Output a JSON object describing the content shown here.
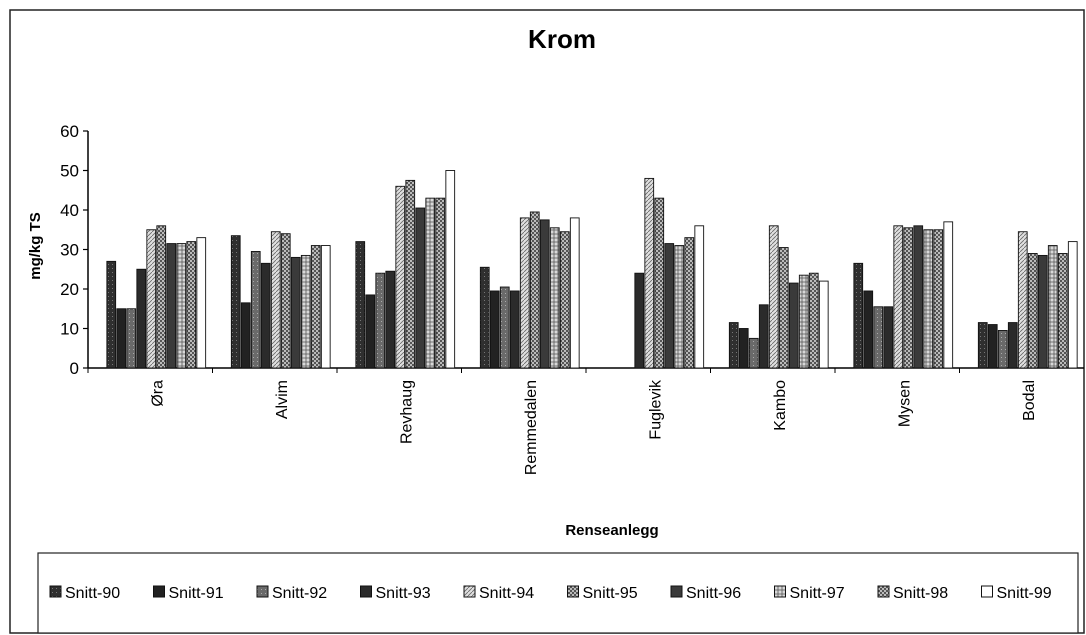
{
  "chart_data": {
    "type": "bar",
    "title": "Krom",
    "xlabel": "Renseanlegg",
    "ylabel": "mg/kg TS",
    "ylim": [
      0,
      60
    ],
    "yticks": [
      0,
      10,
      20,
      30,
      40,
      50,
      60
    ],
    "grid": false,
    "legend_position": "bottom",
    "categories": [
      "Øra",
      "Alvim",
      "Revhaug",
      "Remmedalen",
      "Fuglevik",
      "Kambo",
      "Mysen",
      "Bodal"
    ],
    "series": [
      {
        "name": "Snitt-90",
        "values": [
          27,
          33.5,
          32,
          25.5,
          null,
          11.5,
          26.5,
          11.5
        ],
        "color": "#3a3a3a"
      },
      {
        "name": "Snitt-91",
        "values": [
          15,
          16.5,
          18.5,
          19.5,
          null,
          10,
          19.5,
          11
        ],
        "color": "#2a2a2a"
      },
      {
        "name": "Snitt-92",
        "values": [
          15,
          29.5,
          24,
          20.5,
          null,
          7.5,
          15.5,
          9.5
        ],
        "color": "#555555"
      },
      {
        "name": "Snitt-93",
        "values": [
          25,
          26.5,
          24.5,
          19.5,
          24,
          16,
          15.5,
          11.5
        ],
        "color": "#333333"
      },
      {
        "name": "Snitt-94",
        "values": [
          35,
          34.5,
          46,
          38,
          48,
          36,
          36,
          34.5
        ],
        "color": "#bdbdbd"
      },
      {
        "name": "Snitt-95",
        "values": [
          36,
          34,
          47.5,
          39.5,
          43,
          30.5,
          35.5,
          29
        ],
        "color": "#8a8a8a"
      },
      {
        "name": "Snitt-96",
        "values": [
          31.5,
          28,
          40.5,
          37.5,
          31.5,
          21.5,
          36,
          28.5
        ],
        "color": "#4a4a4a"
      },
      {
        "name": "Snitt-97",
        "values": [
          31.5,
          28.5,
          43,
          35.5,
          31,
          23.5,
          35,
          31
        ],
        "color": "#a6a6a6"
      },
      {
        "name": "Snitt-98",
        "values": [
          32,
          31,
          43,
          34.5,
          33,
          24,
          35,
          29
        ],
        "color": "#7a7a7a"
      },
      {
        "name": "Snitt-99",
        "values": [
          33,
          31,
          50,
          38,
          36,
          22,
          37,
          32
        ],
        "color": "#ffffff"
      }
    ]
  }
}
